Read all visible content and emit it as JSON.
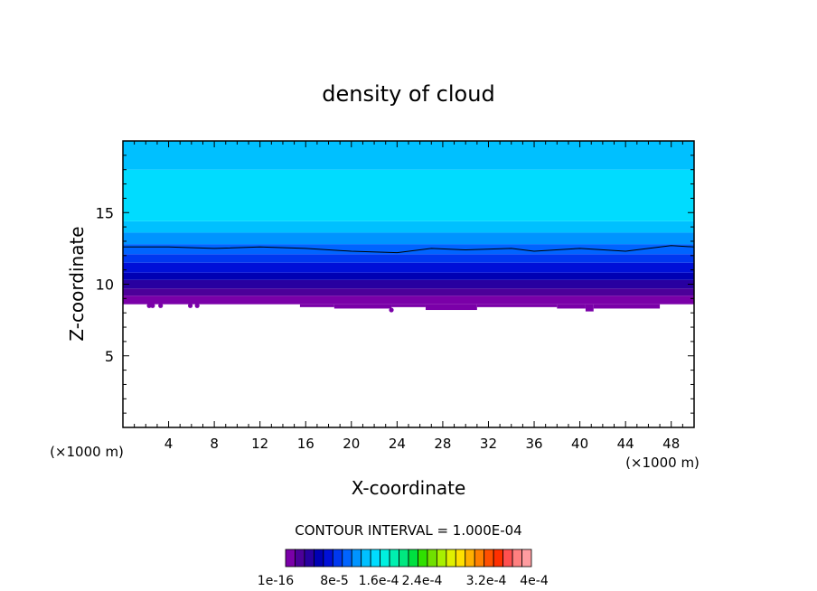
{
  "chart_data": {
    "type": "heatmap",
    "title": "density of cloud",
    "xlabel": "X-coordinate",
    "ylabel": "Z-coordinate",
    "x_unit_label_left": "(×1000 m)",
    "x_unit_label_right": "(×1000 m)",
    "xlim": [
      0,
      50
    ],
    "ylim": [
      0,
      20
    ],
    "x_ticks": [
      4,
      8,
      12,
      16,
      20,
      24,
      28,
      32,
      36,
      40,
      44,
      48
    ],
    "x_tick_labels": [
      "4",
      "8",
      "12",
      "16",
      "20",
      "24",
      "28",
      "32",
      "36",
      "40",
      "44",
      "48"
    ],
    "y_ticks": [
      5,
      10,
      15
    ],
    "y_tick_labels": [
      "5",
      "10",
      "15"
    ],
    "contour_interval_text": "CONTOUR INTERVAL = 1.000E-04",
    "colorbar": {
      "tick_labels": [
        "1e-16",
        "8e-5",
        "1.6e-4",
        "2.4e-4",
        "3.2e-4",
        "4e-4"
      ],
      "colors": [
        "#7a00a8",
        "#4c0099",
        "#2800a0",
        "#0000b4",
        "#0010d8",
        "#0038f0",
        "#0064ff",
        "#0094ff",
        "#00c0ff",
        "#00dcff",
        "#00f0e0",
        "#00f0b0",
        "#00e880",
        "#00e040",
        "#30e000",
        "#70e000",
        "#a8f000",
        "#e0f000",
        "#ffe000",
        "#ffb000",
        "#ff8000",
        "#ff5000",
        "#ff3000",
        "#ff5050",
        "#ff8080",
        "#ff9ca0"
      ]
    },
    "bands": [
      {
        "z_from": 8.6,
        "z_to": 9.2,
        "color": "#7a00a8"
      },
      {
        "z_from": 9.2,
        "z_to": 9.7,
        "color": "#4c0099"
      },
      {
        "z_from": 9.7,
        "z_to": 10.3,
        "color": "#2800a0"
      },
      {
        "z_from": 10.3,
        "z_to": 10.8,
        "color": "#0000b4"
      },
      {
        "z_from": 10.8,
        "z_to": 11.5,
        "color": "#0010d8"
      },
      {
        "z_from": 11.5,
        "z_to": 12.1,
        "color": "#0038f0"
      },
      {
        "z_from": 12.1,
        "z_to": 12.8,
        "color": "#0064ff"
      },
      {
        "z_from": 12.8,
        "z_to": 13.6,
        "color": "#0094ff"
      },
      {
        "z_from": 13.6,
        "z_to": 14.4,
        "color": "#00c0ff"
      },
      {
        "z_from": 14.4,
        "z_to": 18.0,
        "color": "#00dcff"
      },
      {
        "z_from": 18.0,
        "z_to": 20.0,
        "color": "#00c0ff"
      }
    ],
    "contour_line": {
      "color": "#000000",
      "x": [
        0,
        4,
        8,
        12,
        16,
        20,
        24,
        27,
        30,
        34,
        36,
        40,
        44,
        48,
        50
      ],
      "z": [
        12.6,
        12.6,
        12.5,
        12.6,
        12.5,
        12.3,
        12.2,
        12.5,
        12.4,
        12.5,
        12.3,
        12.5,
        12.3,
        12.7,
        12.6
      ]
    },
    "cloud_base_bumps": [
      {
        "x_from": 15.5,
        "x_to": 18.5,
        "z": 8.4
      },
      {
        "x_from": 18.5,
        "x_to": 23.5,
        "z": 8.3
      },
      {
        "x_from": 23.5,
        "x_to": 26.5,
        "z": 8.4
      },
      {
        "x_from": 26.5,
        "x_to": 31,
        "z": 8.2
      },
      {
        "x_from": 31,
        "x_to": 38,
        "z": 8.4
      },
      {
        "x_from": 38,
        "x_to": 40.5,
        "z": 8.3
      },
      {
        "x_from": 40.5,
        "x_to": 41.2,
        "z": 8.1
      },
      {
        "x_from": 41.2,
        "x_to": 47,
        "z": 8.3
      }
    ],
    "cloud_specks": [
      {
        "x": 2.3,
        "z": 8.5
      },
      {
        "x": 2.6,
        "z": 8.5
      },
      {
        "x": 3.3,
        "z": 8.5
      },
      {
        "x": 5.9,
        "z": 8.5
      },
      {
        "x": 6.5,
        "z": 8.5
      },
      {
        "x": 23.5,
        "z": 8.2
      }
    ]
  }
}
